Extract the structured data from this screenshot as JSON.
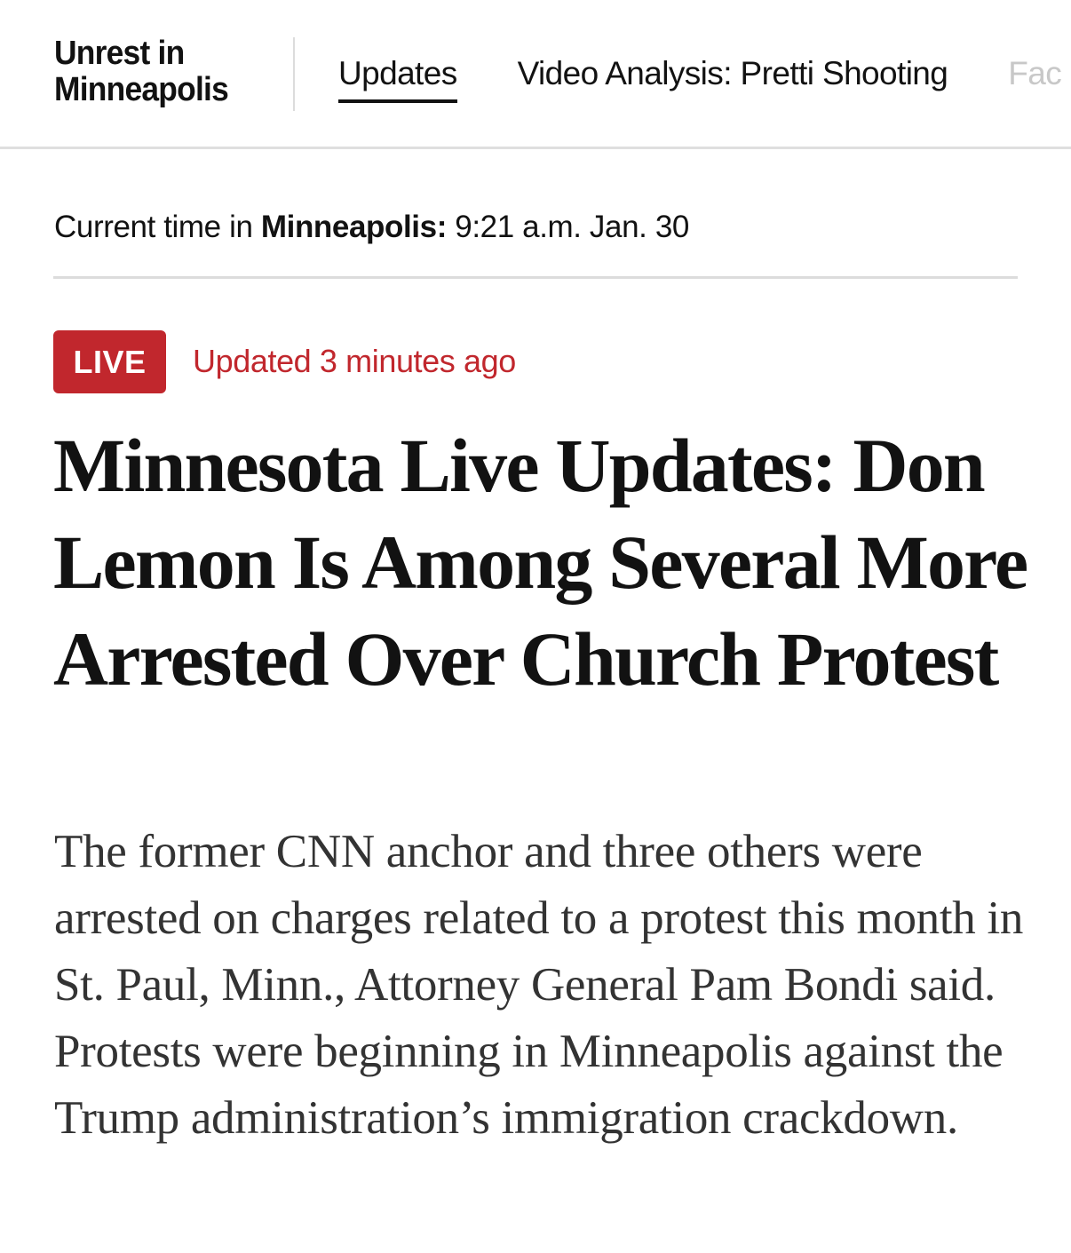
{
  "header": {
    "section_title_line1": "Unrest in",
    "section_title_line2": "Minneapolis",
    "nav": [
      {
        "label": "Updates",
        "active": true
      },
      {
        "label": "Video Analysis: Pretti Shooting",
        "active": false
      },
      {
        "label": "Fac",
        "active": false
      }
    ]
  },
  "time": {
    "prefix": "Current time in",
    "city": "Minneapolis:",
    "value": "9:21 a.m. Jan. 30"
  },
  "status": {
    "live_label": "LIVE",
    "updated": "Updated 3 minutes ago",
    "accent_color": "#c1272d"
  },
  "article": {
    "headline": "Minnesota Live Updates: Don Lemon Is Among Several More Arrested Over Church Protest",
    "summary": "The former CNN anchor and three others were arrested on charges related to a protest this month in St. Paul, Minn., Attorney General Pam Bondi said. Protests were beginning in Minneapolis against the Trump administration’s immigration crackdown."
  }
}
